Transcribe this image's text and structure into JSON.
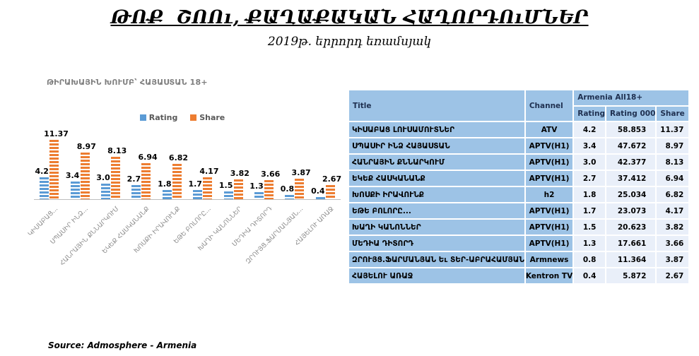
{
  "page": {
    "title": "ԹՈՔ  ՇՈՈւ, ՔԱՂԱՔԱԿԱՆ ՀԱՂՈՐԴՈւՄՆԵՐ",
    "subtitle": "2019թ. երրորդ եռամսյակ",
    "source": "Source: Admosphere - Armenia"
  },
  "chart_data": {
    "type": "bar",
    "title": "ԹԻՐԱԽԱՅԻՆ ԽՈՒՄԲ՝ ՀԱՅԱՍՏԱՆ 18+",
    "legend_position": "top",
    "grid": false,
    "ylim": [
      0,
      12
    ],
    "categories": [
      "ԿԻՍԱԲԱՑ...",
      "ՍՊԱՍԻՐ ԻՆՁ...",
      "ՀԱՆՐԱՅԻՆ ՔՆՆԱՐԿՈՒՄ",
      "ԵԿԵՔ ՀԱՍԿԱՆԱՆՔ",
      "ԽՈՍՔԻ ԻՐԱՎՈՒՆՔ",
      "ԵԹԵ ԲՈԼՈՐԸ...",
      "ԽԱՂԻ ԿԱՆՈՆՆԵՐ",
      "ՄԵԴԻԱ ԴԻՏՈՐԴ",
      "ԶՐՈՒՅՑ.ՖԱՐՄԱՆՅԱՆ...",
      "ՀԱՅԵԼՈՒ ԱՌԱՋ"
    ],
    "series": [
      {
        "name": "Rating",
        "color": "#5B9BD5",
        "values": [
          4.2,
          3.4,
          3.0,
          2.7,
          1.8,
          1.7,
          1.5,
          1.3,
          0.8,
          0.4
        ],
        "labels": [
          "4.2",
          "3.4",
          "3.0",
          "2.7",
          "1.8",
          "1.7",
          "1.5",
          "1.3",
          "0.8",
          "0.4"
        ]
      },
      {
        "name": "Share",
        "color": "#ED7D31",
        "values": [
          11.37,
          8.97,
          8.13,
          6.94,
          6.82,
          4.17,
          3.82,
          3.66,
          3.87,
          2.67
        ],
        "labels": [
          "11.37",
          "8.97",
          "8.13",
          "6.94",
          "6.82",
          "4.17",
          "3.82",
          "3.66",
          "3.87",
          "2.67"
        ]
      }
    ]
  },
  "table": {
    "group_header": "Armenia All18+",
    "columns": [
      "Title",
      "Channel",
      "Rating",
      "Rating 000",
      "Share"
    ],
    "rows": [
      {
        "title": "ԿԻՍԱԲԱՑ ԼՈՒՍԱՄՈՒՏՆԵՐ",
        "channel": "ATV",
        "rating": "4.2",
        "rating000": "58.853",
        "share": "11.37"
      },
      {
        "title": "ՍՊԱՍԻՐ ԻՆՁ ՀԱՅԱՍՏԱՆ",
        "channel": "APTV(H1)",
        "rating": "3.4",
        "rating000": "47.672",
        "share": "8.97"
      },
      {
        "title": "ՀԱՆՐԱՅԻՆ ՔՆՆԱՐԿՈՒՄ",
        "channel": "APTV(H1)",
        "rating": "3.0",
        "rating000": "42.377",
        "share": "8.13"
      },
      {
        "title": "ԵԿԵՔ ՀԱՍԿԱՆԱՆՔ",
        "channel": "APTV(H1)",
        "rating": "2.7",
        "rating000": "37.412",
        "share": "6.94"
      },
      {
        "title": "ԽՈՍՔԻ ԻՐԱՎՈՒՆՔ",
        "channel": "h2",
        "rating": "1.8",
        "rating000": "25.034",
        "share": "6.82"
      },
      {
        "title": "ԵԹԵ ԲՈԼՈՐԸ...",
        "channel": "APTV(H1)",
        "rating": "1.7",
        "rating000": "23.073",
        "share": "4.17"
      },
      {
        "title": "ԽԱՂԻ ԿԱՆՈՆՆԵՐ",
        "channel": "APTV(H1)",
        "rating": "1.5",
        "rating000": "20.623",
        "share": "3.82"
      },
      {
        "title": "ՄԵԴԻԱ ԴԻՏՈՐԴ",
        "channel": "APTV(H1)",
        "rating": "1.3",
        "rating000": "17.661",
        "share": "3.66"
      },
      {
        "title": "ԶՐՈՒՅՑ.ՖԱՐՄԱՆՅԱՆ Եւ ՏԵՐ-ԱԲՐԱՀԱՄՅԱՆ",
        "channel": "Armnews",
        "rating": "0.8",
        "rating000": "11.364",
        "share": "3.87"
      },
      {
        "title": "ՀԱՅԵԼՈՒ ԱՌԱՋ",
        "channel": "Kentron TV",
        "rating": "0.4",
        "rating000": "5.872",
        "share": "2.67"
      }
    ]
  },
  "colors": {
    "rating_bar": "#5B9BD5",
    "share_bar": "#ED7D31",
    "table_header_blue": "#9DC3E6",
    "table_cell_light": "#E9EFF9",
    "axis_line": "#BDBDBD",
    "axis_label_gray": "#8C8C8C",
    "chart_title_gray": "#7F7F7F"
  }
}
